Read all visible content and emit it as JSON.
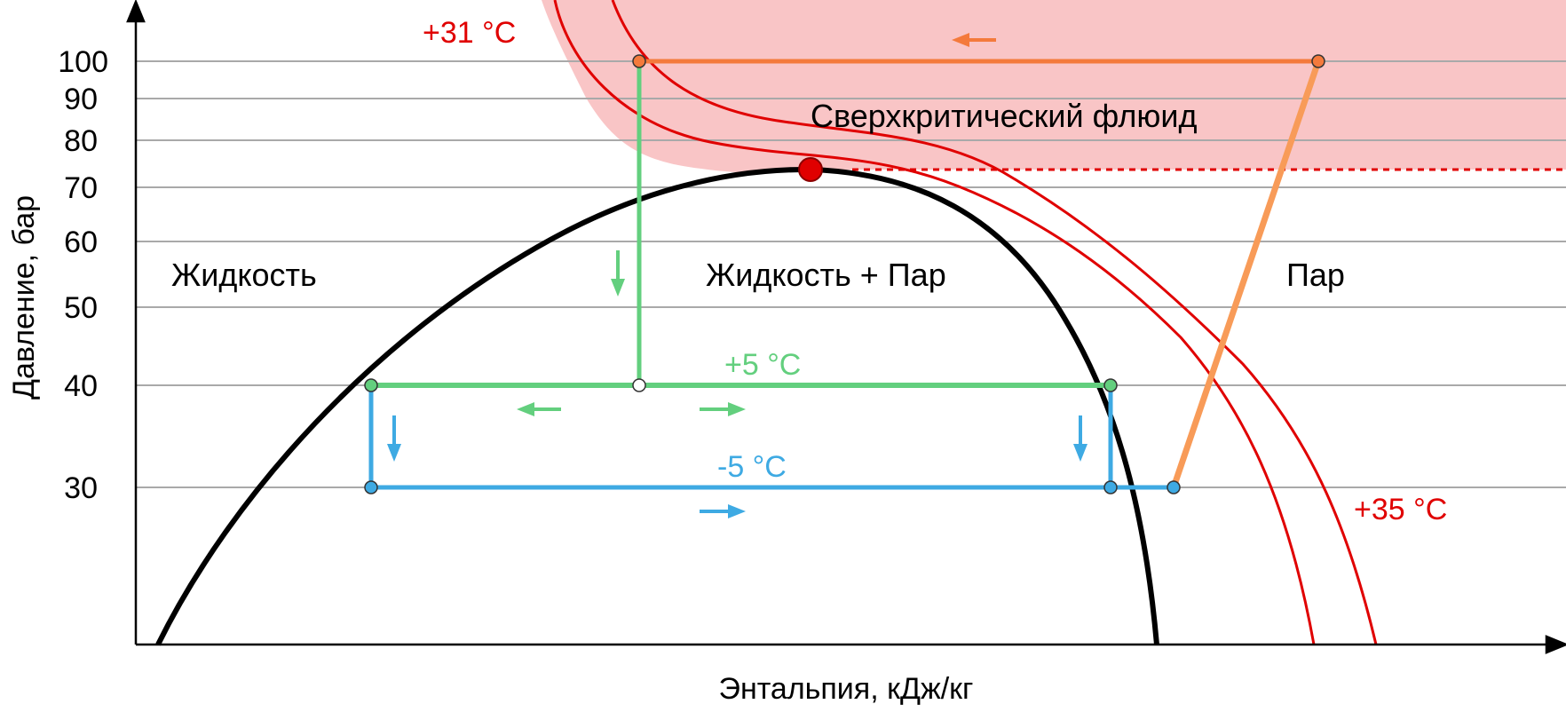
{
  "axes": {
    "ylabel": "Давление, бар",
    "xlabel": "Энтальпия, кДж/кг",
    "y_ticks": [
      "100",
      "90",
      "80",
      "70",
      "60",
      "50",
      "40",
      "30"
    ]
  },
  "regions": {
    "liquid": "Жидкость",
    "two_phase": "Жидкость + Пар",
    "vapor": "Пар",
    "supercritical": "Сверхкритический флюид"
  },
  "isotherms": {
    "critical": "+31 °C",
    "high": "+35 °C",
    "evaporation_1": "+5 °C",
    "evaporation_2": "-5 °C"
  },
  "colors": {
    "supercritical_fill": "#f9c5c6",
    "isotherm_red": "#e00000",
    "critical_point": "#e00000",
    "saturation_curve": "#000000",
    "path_orange": "#f47a3c",
    "path_orange_light": "#f89b58",
    "path_green": "#63cf7e",
    "path_blue": "#3eaae3",
    "grid": "#a9a9a9"
  }
}
